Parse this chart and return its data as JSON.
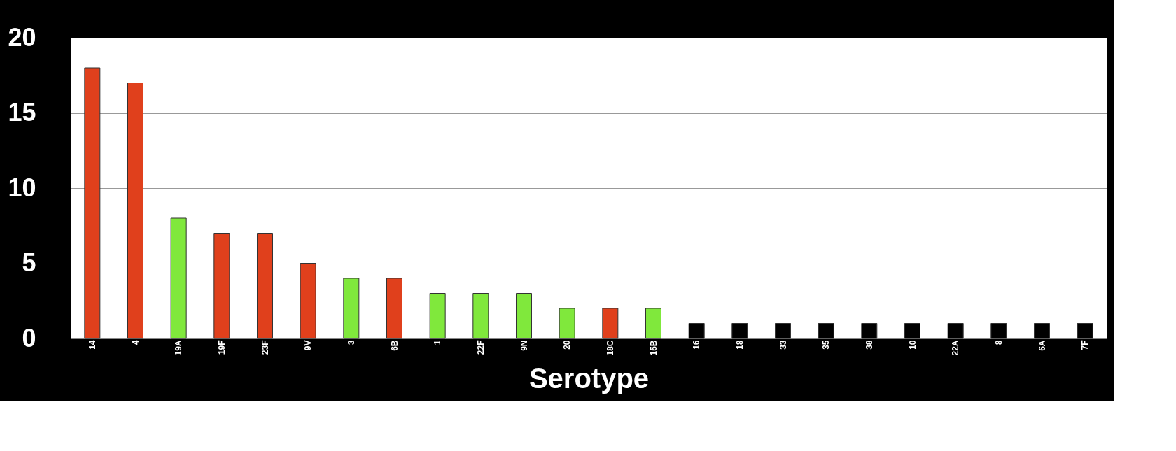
{
  "chart_data": {
    "type": "bar",
    "xlabel": "Serotype",
    "categories": [
      "14",
      "4",
      "19A",
      "19F",
      "23F",
      "9V",
      "3",
      "6B",
      "1",
      "22F",
      "9N",
      "20",
      "18C",
      "15B",
      "16",
      "18",
      "33",
      "35",
      "38",
      "10",
      "22A",
      "8",
      "6A",
      "7F"
    ],
    "values": [
      18,
      17,
      8,
      7,
      7,
      5,
      4,
      4,
      3,
      3,
      3,
      2,
      2,
      2,
      1,
      1,
      1,
      1,
      1,
      1,
      1,
      1,
      1,
      1
    ],
    "colors": [
      "#e0401c",
      "#e0401c",
      "#80e83c",
      "#e0401c",
      "#e0401c",
      "#e0401c",
      "#80e83c",
      "#e0401c",
      "#80e83c",
      "#80e83c",
      "#80e83c",
      "#80e83c",
      "#e0401c",
      "#80e83c",
      "#000000",
      "#000000",
      "#000000",
      "#000000",
      "#000000",
      "#000000",
      "#000000",
      "#000000",
      "#000000",
      "#000000"
    ],
    "ylim": [
      0,
      20
    ],
    "yticks": [
      0,
      5,
      10,
      15,
      20
    ],
    "grid": "y"
  }
}
